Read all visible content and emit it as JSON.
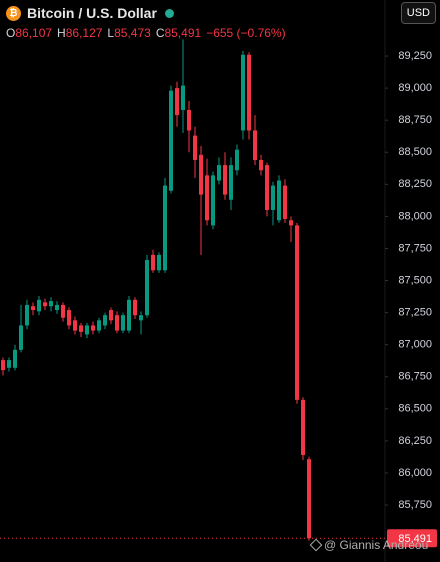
{
  "chart_data": {
    "type": "candlestick",
    "title": "Bitcoin / U.S. Dollar",
    "quote": [
      {
        "label": "O",
        "value": "86,107"
      },
      {
        "label": "H",
        "value": "86,127"
      },
      {
        "label": "L",
        "value": "85,473"
      },
      {
        "label": "C",
        "value": "85,491"
      }
    ],
    "change": "−655 (−0.76%)",
    "currency": "USD",
    "watermark": "@ Giannis Andreou",
    "up_color": "#089981",
    "down_color": "#f23645",
    "last_price": {
      "value": 85491,
      "label": "85,491"
    },
    "open": [
      86880,
      86820,
      86820,
      86960,
      87150,
      87300,
      87260,
      87330,
      87300,
      87270,
      87310,
      87270,
      87190,
      87150,
      87080,
      87150,
      87110,
      87150,
      87270,
      87230,
      87110,
      87110,
      87350,
      87190,
      87230,
      87700,
      87580,
      87580,
      88200,
      89000,
      88830,
      88830,
      88630,
      88480,
      88320,
      87930,
      88280,
      88400,
      88130,
      88360,
      88670,
      89260,
      88670,
      88440,
      88400,
      88050,
      87970,
      88240,
      87970,
      87930,
      86570,
      86107
    ],
    "high": [
      86900,
      86900,
      87000,
      87310,
      87350,
      87330,
      87380,
      87360,
      87370,
      87340,
      87330,
      87290,
      87220,
      87170,
      87170,
      87180,
      87210,
      87250,
      87290,
      87260,
      87250,
      87380,
      87370,
      87260,
      87700,
      87740,
      87720,
      88300,
      89020,
      89050,
      89380,
      88900,
      88700,
      88550,
      88450,
      88350,
      88460,
      88500,
      88460,
      88560,
      89290,
      89280,
      88790,
      88480,
      88420,
      88270,
      88320,
      88290,
      88000,
      87950,
      86590,
      86127
    ],
    "low": [
      86760,
      86790,
      86800,
      86940,
      87120,
      87230,
      87230,
      87270,
      87260,
      87240,
      87180,
      87120,
      87080,
      87060,
      87050,
      87080,
      87090,
      87120,
      87160,
      87090,
      87090,
      87090,
      87200,
      87080,
      87210,
      87560,
      87560,
      87560,
      88180,
      88700,
      88650,
      88500,
      88300,
      87700,
      87930,
      87900,
      88250,
      88130,
      88050,
      88320,
      88600,
      88600,
      88400,
      88320,
      88000,
      87930,
      87950,
      87950,
      87800,
      86540,
      86100,
      85473
    ],
    "close": [
      86802,
      86880,
      86960,
      87150,
      87310,
      87270,
      87350,
      87300,
      87340,
      87310,
      87210,
      87150,
      87110,
      87100,
      87150,
      87110,
      87190,
      87230,
      87190,
      87110,
      87230,
      87350,
      87230,
      87230,
      87660,
      87580,
      87700,
      88240,
      88980,
      88790,
      89020,
      88670,
      88440,
      88170,
      87970,
      88320,
      88400,
      88170,
      88400,
      88520,
      89260,
      88670,
      88440,
      88360,
      88050,
      88240,
      88280,
      87980,
      87930,
      86570,
      86140,
      85491
    ],
    "ylim": [
      85306,
      89687
    ],
    "yticks": [
      {
        "value": 85750,
        "label": "85,750"
      },
      {
        "value": 86000,
        "label": "86,000"
      },
      {
        "value": 86250,
        "label": "86,250"
      },
      {
        "value": 86500,
        "label": "86,500"
      },
      {
        "value": 86750,
        "label": "86,750"
      },
      {
        "value": 87000,
        "label": "87,000"
      },
      {
        "value": 87250,
        "label": "87,250"
      },
      {
        "value": 87500,
        "label": "87,500"
      },
      {
        "value": 87750,
        "label": "87,750"
      },
      {
        "value": 88000,
        "label": "88,000"
      },
      {
        "value": 88250,
        "label": "88,250"
      },
      {
        "value": 88500,
        "label": "88,500"
      },
      {
        "value": 88750,
        "label": "88,750"
      },
      {
        "value": 89000,
        "label": "89,000"
      },
      {
        "value": 89250,
        "label": "89,250"
      }
    ]
  }
}
